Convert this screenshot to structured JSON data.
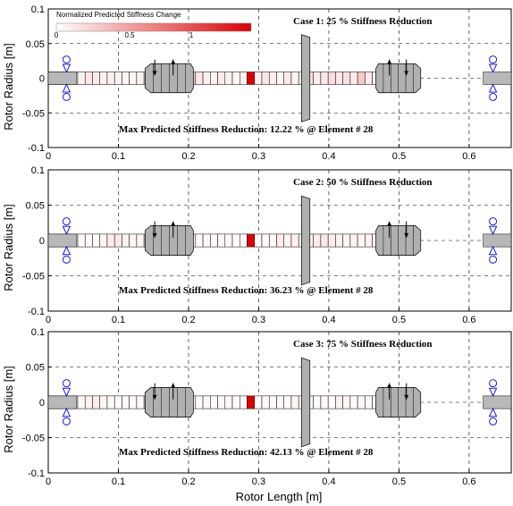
{
  "figure": {
    "ylabel": "Rotor Radius [m]",
    "xlabel": "Rotor Length [m]",
    "colorbar": {
      "title": "Normalized Predicted Stiffness Change",
      "ticks": [
        "0",
        "0.5",
        "1"
      ],
      "color_low": "#ffffff",
      "color_high": "#e00000"
    }
  },
  "chart_data": {
    "type": "rotor_model_diagram",
    "xlim": [
      0,
      0.66
    ],
    "ylim": [
      -0.1,
      0.1
    ],
    "xticks": [
      0,
      0.1,
      0.2,
      0.3,
      0.4,
      0.5,
      0.6
    ],
    "yticks": [
      0.1,
      0.05,
      0,
      -0.05,
      -0.1
    ],
    "xtick_labels": [
      "0",
      "0.1",
      "0.2",
      "0.3",
      "0.4",
      "0.5",
      "0.6"
    ],
    "ytick_labels": [
      "0.1",
      "0.05",
      "0",
      "-0.05",
      "-0.1"
    ],
    "grid": "dashed",
    "shaft_radius": 0.009,
    "element_length": 0.0105,
    "n_elements": 49,
    "damaged_element": 28,
    "bearings_x": [
      0.026,
      0.634
    ],
    "disks": [
      {
        "name": "impeller-left",
        "x0": 0.138,
        "x1": 0.207,
        "r_outer": 0.021,
        "r_inner": 0.014
      },
      {
        "name": "center-disk",
        "x0": 0.361,
        "x1": 0.373,
        "r_outer": 0.063
      },
      {
        "name": "impeller-right",
        "x0": 0.467,
        "x1": 0.531,
        "r_outer": 0.021,
        "r_inner": 0.014
      }
    ],
    "cases": [
      {
        "title": "Case 1: 25 % Stiffness Reduction",
        "result": "Max Predicted Stiffness Reduction: 12.22 % @ Element # 28",
        "element_intensity": [
          0.05,
          0.12,
          0.08,
          0.02,
          0.05,
          0.1,
          0.08,
          0.05,
          0.06,
          0.05,
          0.03,
          0.04,
          0.06,
          0.03,
          0.04,
          0.03,
          0.05,
          0.04,
          0.14,
          0.18,
          0.1,
          0.06,
          0.05,
          0.08,
          0.06,
          0.04,
          0.05,
          1.0,
          0.06,
          0.1,
          0.07,
          0.04,
          0.09,
          0.05,
          0.06,
          0.12,
          0.08,
          0.1,
          0.14,
          0.1,
          0.12,
          0.08,
          0.22,
          0.08,
          0.04,
          0.03,
          0.02,
          0.05,
          0.04
        ]
      },
      {
        "title": "Case 2: 50 % Stiffness Reduction",
        "result": "Max Predicted Stiffness Reduction: 36.23 % @ Element # 28",
        "element_intensity": [
          0.03,
          0.05,
          0.02,
          0.02,
          0.03,
          0.02,
          0.02,
          0.03,
          0.08,
          0.1,
          0.06,
          0.03,
          0.05,
          0.03,
          0.02,
          0.03,
          0.02,
          0.02,
          0.03,
          0.02,
          0.02,
          0.04,
          0.03,
          0.02,
          0.03,
          0.02,
          0.02,
          1.0,
          0.03,
          0.02,
          0.03,
          0.08,
          0.05,
          0.06,
          0.04,
          0.05,
          0.08,
          0.1,
          0.08,
          0.05,
          0.04,
          0.06,
          0.04,
          0.05,
          0.04,
          0.12,
          0.03,
          0.02,
          0.03
        ]
      },
      {
        "title": "Case 3: 75 % Stiffness Reduction",
        "result": "Max Predicted Stiffness Reduction: 42.13 % @ Element # 28",
        "element_intensity": [
          0.02,
          0.06,
          0.04,
          0.02,
          0.03,
          0.05,
          0.08,
          0.04,
          0.03,
          0.02,
          0.03,
          0.02,
          0.03,
          0.04,
          0.02,
          0.03,
          0.02,
          0.02,
          0.03,
          0.02,
          0.02,
          0.03,
          0.02,
          0.02,
          0.03,
          0.02,
          0.02,
          1.0,
          0.02,
          0.03,
          0.02,
          0.03,
          0.02,
          0.04,
          0.03,
          0.02,
          0.02,
          0.03,
          0.02,
          0.05,
          0.03,
          0.02,
          0.03,
          0.02,
          0.03,
          0.02,
          0.03,
          0.02,
          0.03
        ]
      }
    ]
  }
}
